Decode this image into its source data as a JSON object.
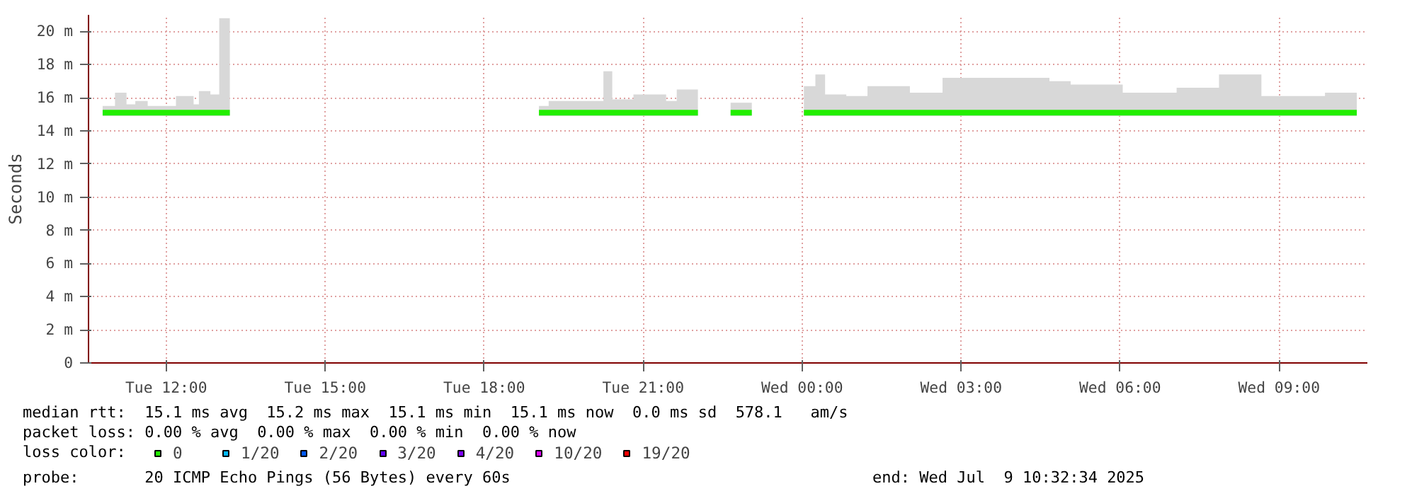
{
  "chart_data": {
    "type": "line",
    "ylabel": "Seconds",
    "legend_title": "loss color:",
    "legend": "bottom",
    "grid": true,
    "x": [
      "2025-07-08T10:48",
      "2025-07-08T11:02",
      "2025-07-08T11:15",
      "2025-07-08T11:25",
      "2025-07-08T11:39",
      "2025-07-08T12:11",
      "2025-07-08T12:31",
      "2025-07-08T12:37",
      "2025-07-08T12:50",
      "2025-07-08T13:00",
      "2025-07-08T13:12",
      "2025-07-08T13:30",
      "2025-07-08T19:02",
      "2025-07-08T19:13",
      "2025-07-08T19:31",
      "2025-07-08T20:15",
      "2025-07-08T20:25",
      "2025-07-08T20:49",
      "2025-07-08T21:26",
      "2025-07-08T21:38",
      "2025-07-08T22:02",
      "2025-07-08T22:20",
      "2025-07-08T22:39",
      "2025-07-08T23:03",
      "2025-07-08T23:30",
      "2025-07-09T00:02",
      "2025-07-09T00:15",
      "2025-07-09T00:26",
      "2025-07-09T00:50",
      "2025-07-09T01:14",
      "2025-07-09T02:02",
      "2025-07-09T02:39",
      "2025-07-09T04:40",
      "2025-07-09T05:04",
      "2025-07-09T05:28",
      "2025-07-09T06:03",
      "2025-07-09T07:04",
      "2025-07-09T07:52",
      "2025-07-09T08:40",
      "2025-07-09T09:28",
      "2025-07-09T09:52",
      "2025-07-09T10:28"
    ],
    "series": [
      {
        "name": "0",
        "color": "#22ee00",
        "values": [
          15.1,
          15.1,
          15.1,
          15.1,
          15.1,
          15.1,
          15.1,
          15.1,
          15.1,
          15.1,
          15.1,
          null,
          15.1,
          15.1,
          15.1,
          15.1,
          15.1,
          15.1,
          15.1,
          15.1,
          15.1,
          null,
          15.1,
          15.1,
          null,
          15.1,
          15.1,
          15.1,
          15.1,
          15.1,
          15.1,
          15.1,
          15.1,
          15.1,
          15.1,
          15.1,
          15.1,
          15.1,
          15.1,
          15.1,
          15.1,
          15.1
        ],
        "lower": [
          14.9,
          14.9,
          14.9,
          14.9,
          14.9,
          14.9,
          14.9,
          14.9,
          14.9,
          14.9,
          14.9,
          null,
          14.9,
          14.9,
          14.9,
          14.9,
          14.9,
          14.9,
          14.9,
          14.9,
          14.9,
          null,
          14.9,
          14.9,
          null,
          14.9,
          14.9,
          14.9,
          14.9,
          14.9,
          14.9,
          14.9,
          14.9,
          14.9,
          14.9,
          14.9,
          14.9,
          14.9,
          14.9,
          14.9,
          14.9,
          14.9
        ],
        "upper": [
          15.5,
          16.3,
          15.6,
          15.8,
          15.5,
          16.1,
          15.6,
          16.4,
          16.2,
          20.8,
          20.8,
          null,
          15.5,
          15.8,
          15.8,
          17.6,
          15.9,
          16.2,
          15.8,
          16.5,
          15.5,
          null,
          15.7,
          15.5,
          null,
          16.7,
          17.4,
          16.2,
          16.1,
          16.7,
          16.3,
          17.2,
          17.0,
          16.8,
          16.8,
          16.3,
          16.6,
          17.4,
          16.1,
          16.1,
          16.3,
          16.0
        ]
      },
      {
        "name": "1/20",
        "color": "#00b8ff",
        "values": [
          null,
          null,
          null,
          null,
          null,
          null,
          null,
          null,
          null,
          null,
          null,
          null,
          null,
          null,
          null,
          null,
          null,
          null,
          null,
          null,
          null,
          null,
          null,
          null,
          null,
          null,
          null,
          null,
          null,
          null,
          null,
          null,
          null,
          null,
          null,
          null,
          null,
          null,
          null,
          null,
          null,
          null
        ]
      },
      {
        "name": "2/20",
        "color": "#0059ff",
        "values": [
          null,
          null,
          null,
          null,
          null,
          null,
          null,
          null,
          null,
          null,
          null,
          null,
          null,
          null,
          null,
          null,
          null,
          null,
          null,
          null,
          null,
          null,
          null,
          null,
          null,
          null,
          null,
          null,
          null,
          null,
          null,
          null,
          null,
          null,
          null,
          null,
          null,
          null,
          null,
          null,
          null,
          null
        ]
      },
      {
        "name": "3/20",
        "color": "#5e00ff",
        "values": [
          null,
          null,
          null,
          null,
          null,
          null,
          null,
          null,
          null,
          null,
          null,
          null,
          null,
          null,
          null,
          null,
          null,
          null,
          null,
          null,
          null,
          null,
          null,
          null,
          null,
          null,
          null,
          null,
          null,
          null,
          null,
          null,
          null,
          null,
          null,
          null,
          null,
          null,
          null,
          null,
          null,
          null
        ]
      },
      {
        "name": "4/20",
        "color": "#7e00ff",
        "values": [
          null,
          null,
          null,
          null,
          null,
          null,
          null,
          null,
          null,
          null,
          null,
          null,
          null,
          null,
          null,
          null,
          null,
          null,
          null,
          null,
          null,
          null,
          null,
          null,
          null,
          null,
          null,
          null,
          null,
          null,
          null,
          null,
          null,
          null,
          null,
          null,
          null,
          null,
          null,
          null,
          null,
          null
        ]
      },
      {
        "name": "10/20",
        "color": "#dd00ff",
        "values": [
          null,
          null,
          null,
          null,
          null,
          null,
          null,
          null,
          null,
          null,
          null,
          null,
          null,
          null,
          null,
          null,
          null,
          null,
          null,
          null,
          null,
          null,
          null,
          null,
          null,
          null,
          null,
          null,
          null,
          null,
          null,
          null,
          null,
          null,
          null,
          null,
          null,
          null,
          null,
          null,
          null,
          null
        ]
      },
      {
        "name": "19/20",
        "color": "#ff0000",
        "values": [
          null,
          null,
          null,
          null,
          null,
          null,
          null,
          null,
          null,
          null,
          null,
          null,
          null,
          null,
          null,
          null,
          null,
          null,
          null,
          null,
          null,
          null,
          null,
          null,
          null,
          null,
          null,
          null,
          null,
          null,
          null,
          null,
          null,
          null,
          null,
          null,
          null,
          null,
          null,
          null,
          null,
          null
        ]
      }
    ],
    "xlim": [
      "2025-07-08T10:32",
      "2025-07-09T10:40"
    ],
    "xticks": [
      {
        "value": "2025-07-08T12:00",
        "label": "Tue 12:00"
      },
      {
        "value": "2025-07-08T15:00",
        "label": "Tue 15:00"
      },
      {
        "value": "2025-07-08T18:00",
        "label": "Tue 18:00"
      },
      {
        "value": "2025-07-08T21:00",
        "label": "Tue 21:00"
      },
      {
        "value": "2025-07-09T00:00",
        "label": "Wed 00:00"
      },
      {
        "value": "2025-07-09T03:00",
        "label": "Wed 03:00"
      },
      {
        "value": "2025-07-09T06:00",
        "label": "Wed 06:00"
      },
      {
        "value": "2025-07-09T09:00",
        "label": "Wed 09:00"
      }
    ],
    "ylim": [
      0,
      21
    ],
    "yticks": [
      0,
      {
        "value": 2,
        "label": "2 m"
      },
      {
        "value": 4,
        "label": "4 m"
      },
      {
        "value": 6,
        "label": "6 m"
      },
      {
        "value": 8,
        "label": "8 m"
      },
      {
        "value": 10,
        "label": "10 m"
      },
      {
        "value": 12,
        "label": "12 m"
      },
      {
        "value": 14,
        "label": "14 m"
      },
      {
        "value": 16,
        "label": "16 m"
      },
      {
        "value": 18,
        "label": "18 m"
      },
      {
        "value": 20,
        "label": "20 m"
      }
    ],
    "annotations": [
      "median rtt:  15.1 ms avg  15.2 ms max  15.1 ms min  15.1 ms now  0.0 ms sd  578.1   am/s",
      "packet loss: 0.00 % avg  0.00 % max  0.00 % min  0.00 % now",
      "probe:       20 ICMP Echo Pings (56 Bytes) every 60s",
      "end: Wed Jul  9 10:32:34 2025"
    ]
  }
}
